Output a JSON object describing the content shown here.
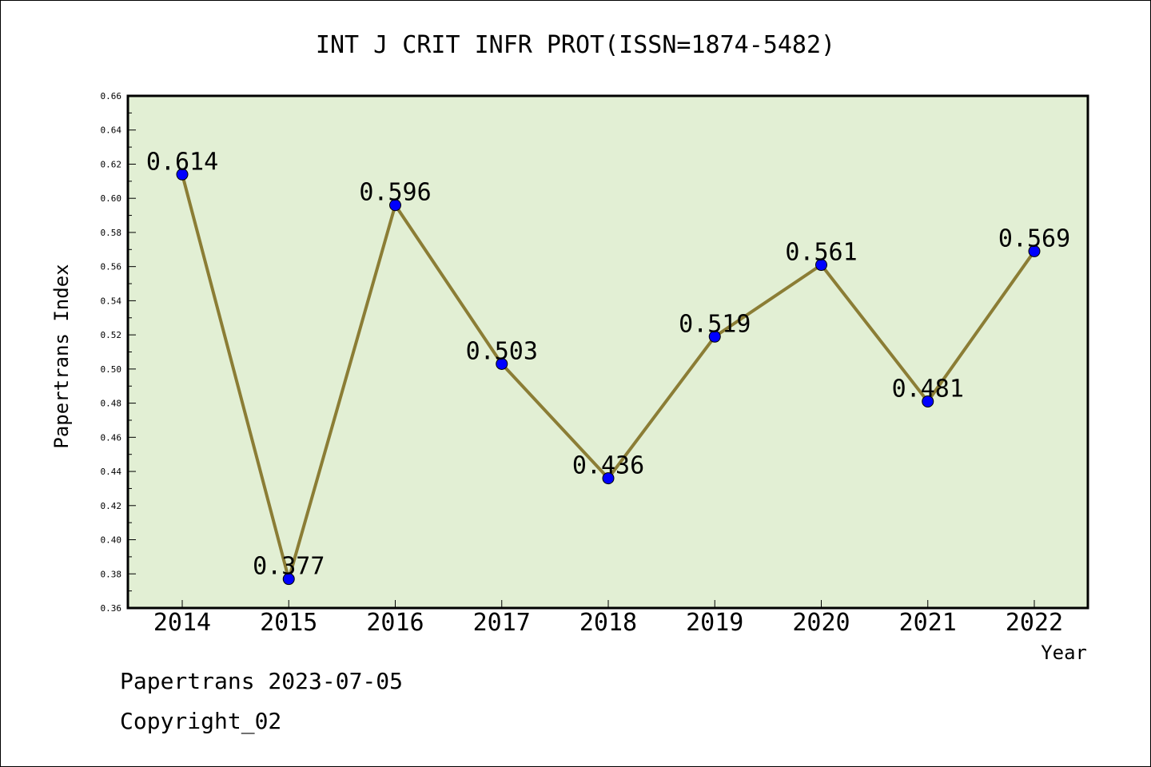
{
  "chart_data": {
    "type": "line",
    "title": "INT J CRIT INFR PROT(ISSN=1874-5482)",
    "xlabel": "Year",
    "ylabel": "Papertrans Index",
    "categories": [
      "2014",
      "2015",
      "2016",
      "2017",
      "2018",
      "2019",
      "2020",
      "2021",
      "2022"
    ],
    "series": [
      {
        "values": [
          0.614,
          0.377,
          0.596,
          0.503,
          0.436,
          0.519,
          0.561,
          0.481,
          0.569
        ],
        "data_labels": [
          "0.614",
          "0.377",
          "0.596",
          "0.503",
          "0.436",
          "0.519",
          "0.561",
          "0.481",
          "0.569"
        ]
      }
    ],
    "ylim": [
      0.36,
      0.66
    ],
    "ytick_labels": [
      "0.36",
      "0.38",
      "0.40",
      "0.42",
      "0.44",
      "0.46",
      "0.48",
      "0.50",
      "0.52",
      "0.54",
      "0.56",
      "0.58",
      "0.60",
      "0.62",
      "0.64",
      "0.66"
    ],
    "grid": false,
    "colors": {
      "plot_background": "#e2efd4",
      "line": "#8b7d35",
      "marker": "#0000ff"
    }
  },
  "footer": {
    "line1": "Papertrans 2023-07-05",
    "line2": "Copyright_02"
  }
}
